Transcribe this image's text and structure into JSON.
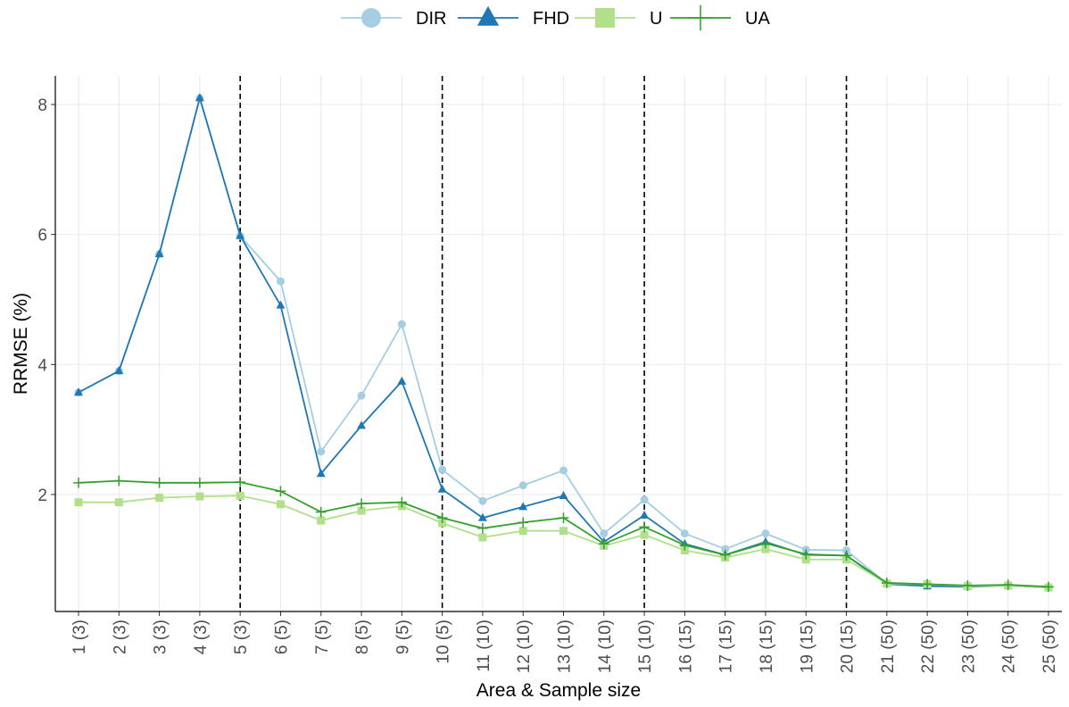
{
  "chart_data": {
    "type": "line",
    "x_label": "Area & Sample size",
    "y_label": "RRMSE (%)",
    "categories": [
      "1 (3)",
      "2 (3)",
      "3 (3)",
      "4 (3)",
      "5 (3)",
      "6 (5)",
      "7 (5)",
      "8 (5)",
      "9 (5)",
      "10 (5)",
      "11 (10)",
      "12 (10)",
      "13 (10)",
      "14 (10)",
      "15 (10)",
      "16 (15)",
      "17 (15)",
      "18 (15)",
      "19 (15)",
      "20 (15)",
      "21 (50)",
      "22 (50)",
      "23 (50)",
      "24 (50)",
      "25 (50)"
    ],
    "series": [
      {
        "name": "DIR",
        "color": "#a6cee3",
        "marker": "circle",
        "values": [
          3.57,
          3.9,
          5.7,
          8.1,
          5.98,
          5.28,
          2.66,
          3.52,
          4.62,
          2.38,
          1.9,
          2.14,
          2.37,
          1.4,
          1.92,
          1.4,
          1.16,
          1.4,
          1.15,
          1.14,
          0.63,
          0.6,
          0.58,
          0.6,
          0.57
        ]
      },
      {
        "name": "FHD",
        "color": "#1f78b4",
        "marker": "triangle",
        "values": [
          3.57,
          3.9,
          5.7,
          8.1,
          5.98,
          4.91,
          2.32,
          3.06,
          3.74,
          2.08,
          1.64,
          1.81,
          1.98,
          1.27,
          1.68,
          1.24,
          1.07,
          1.27,
          1.07,
          1.06,
          0.62,
          0.59,
          0.58,
          0.6,
          0.57
        ]
      },
      {
        "name": "U",
        "color": "#b2df8a",
        "marker": "square",
        "values": [
          1.88,
          1.88,
          1.95,
          1.97,
          1.98,
          1.85,
          1.6,
          1.75,
          1.82,
          1.56,
          1.34,
          1.44,
          1.44,
          1.21,
          1.38,
          1.14,
          1.03,
          1.16,
          1.0,
          1.0,
          0.63,
          0.62,
          0.59,
          0.6,
          0.57
        ]
      },
      {
        "name": "UA",
        "color": "#33a02c",
        "marker": "plus",
        "values": [
          2.18,
          2.21,
          2.18,
          2.18,
          2.19,
          2.05,
          1.73,
          1.86,
          1.88,
          1.64,
          1.48,
          1.57,
          1.64,
          1.24,
          1.5,
          1.22,
          1.07,
          1.25,
          1.08,
          1.06,
          0.64,
          0.62,
          0.6,
          0.61,
          0.58
        ]
      }
    ],
    "ylim": [
      0.2,
      8.44
    ],
    "yticks": [
      2,
      4,
      6,
      8
    ],
    "grid": true,
    "legend": "top",
    "vline_categories": [
      "5 (3)",
      "10 (5)",
      "15 (10)",
      "20 (15)"
    ]
  }
}
